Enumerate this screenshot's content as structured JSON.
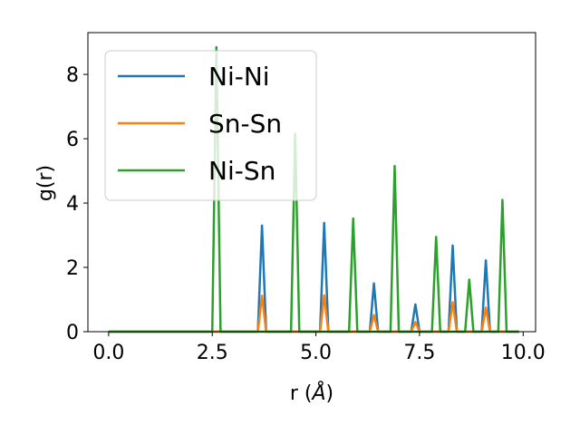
{
  "chart_data": {
    "type": "line",
    "xlabel_prefix": "r (",
    "xlabel_unit": "Å",
    "xlabel_suffix": ")",
    "ylabel": "g(r)",
    "xlim": [
      -0.5,
      10.3
    ],
    "ylim": [
      0,
      9.3
    ],
    "xticks": [
      0.0,
      2.5,
      5.0,
      7.5,
      10.0
    ],
    "xtick_labels": [
      "0.0",
      "2.5",
      "5.0",
      "7.5",
      "10.0"
    ],
    "yticks": [
      0,
      2,
      4,
      6,
      8
    ],
    "ytick_labels": [
      "0",
      "2",
      "4",
      "6",
      "8"
    ],
    "grid": false,
    "legend_position": "top-left",
    "x": [
      0.0,
      0.1,
      0.2,
      0.3,
      0.4,
      0.5,
      0.6,
      0.7,
      0.8,
      0.9,
      1.0,
      1.1,
      1.2,
      1.3,
      1.4,
      1.5,
      1.6,
      1.7,
      1.8,
      1.9,
      2.0,
      2.1,
      2.2,
      2.3,
      2.4,
      2.5,
      2.6,
      2.7,
      2.8,
      2.9,
      3.0,
      3.1,
      3.2,
      3.3,
      3.4,
      3.5,
      3.6,
      3.7,
      3.8,
      3.9,
      4.0,
      4.1,
      4.2,
      4.3,
      4.4,
      4.5,
      4.6,
      4.7,
      4.8,
      4.9,
      5.0,
      5.1,
      5.2,
      5.3,
      5.4,
      5.5,
      5.6,
      5.7,
      5.8,
      5.9,
      6.0,
      6.1,
      6.2,
      6.3,
      6.4,
      6.5,
      6.6,
      6.7,
      6.8,
      6.9,
      7.0,
      7.1,
      7.2,
      7.3,
      7.4,
      7.5,
      7.6,
      7.7,
      7.8,
      7.9,
      8.0,
      8.1,
      8.2,
      8.3,
      8.4,
      8.5,
      8.6,
      8.7,
      8.8,
      8.9,
      9.0,
      9.1,
      9.2,
      9.3,
      9.4,
      9.5,
      9.6,
      9.7,
      9.8,
      9.9
    ],
    "series": [
      {
        "name": "Ni-Ni",
        "color": "#1f77b4",
        "values": [
          0,
          0,
          0,
          0,
          0,
          0,
          0,
          0,
          0,
          0,
          0,
          0,
          0,
          0,
          0,
          0,
          0,
          0,
          0,
          0,
          0,
          0,
          0,
          0,
          0,
          0,
          0,
          0,
          0,
          0,
          0,
          0,
          0,
          0,
          0,
          0,
          0,
          3.3,
          0,
          0,
          0,
          0,
          0,
          0,
          0,
          0,
          0,
          0,
          0,
          0,
          0,
          0,
          3.38,
          0,
          0,
          0,
          0,
          0,
          0,
          0,
          0,
          0,
          0,
          0,
          1.5,
          0,
          0,
          0,
          0,
          0,
          0,
          0,
          0,
          0,
          0.85,
          0,
          0,
          0,
          0,
          0,
          0,
          0,
          0,
          2.68,
          0,
          0,
          0,
          0,
          0,
          0,
          0,
          2.22,
          0,
          0,
          0,
          0,
          0,
          0,
          0,
          0
        ]
      },
      {
        "name": "Sn-Sn",
        "color": "#ff7f0e",
        "values": [
          0,
          0,
          0,
          0,
          0,
          0,
          0,
          0,
          0,
          0,
          0,
          0,
          0,
          0,
          0,
          0,
          0,
          0,
          0,
          0,
          0,
          0,
          0,
          0,
          0,
          0,
          0,
          0,
          0,
          0,
          0,
          0,
          0,
          0,
          0,
          0,
          0,
          1.12,
          0,
          0,
          0,
          0,
          0,
          0,
          0,
          0,
          0,
          0,
          0,
          0,
          0,
          0,
          1.13,
          0,
          0,
          0,
          0,
          0,
          0,
          0,
          0,
          0,
          0,
          0,
          0.52,
          0,
          0,
          0,
          0,
          0,
          0,
          0,
          0,
          0,
          0.3,
          0,
          0,
          0,
          0,
          0,
          0,
          0,
          0,
          0.92,
          0,
          0,
          0,
          0,
          0,
          0,
          0,
          0.75,
          0,
          0,
          0,
          0,
          0,
          0,
          0,
          0
        ]
      },
      {
        "name": "Ni-Sn",
        "color": "#2ca02c",
        "values": [
          0,
          0,
          0,
          0,
          0,
          0,
          0,
          0,
          0,
          0,
          0,
          0,
          0,
          0,
          0,
          0,
          0,
          0,
          0,
          0,
          0,
          0,
          0,
          0,
          0,
          0,
          8.85,
          0,
          0,
          0,
          0,
          0,
          0,
          0,
          0,
          0,
          0,
          0,
          0,
          0,
          0,
          0,
          0,
          0,
          0,
          6.15,
          0,
          0,
          0,
          0,
          0,
          0,
          0,
          0,
          0,
          0,
          0,
          0,
          0,
          3.52,
          0,
          0,
          0,
          0,
          0,
          0,
          0,
          0,
          0,
          5.15,
          0,
          0,
          0,
          0,
          0,
          0,
          0,
          0,
          0,
          2.95,
          0,
          0,
          0,
          0,
          0,
          0,
          0,
          1.62,
          0,
          0,
          0,
          0,
          0,
          0,
          0,
          4.1,
          0,
          0,
          0,
          0
        ]
      }
    ]
  }
}
